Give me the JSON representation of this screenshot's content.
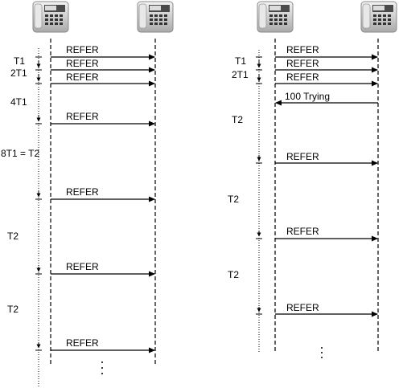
{
  "left_flow": {
    "messages": [
      {
        "label": "REFER"
      },
      {
        "label": "REFER"
      },
      {
        "label": "REFER"
      },
      {
        "label": "REFER"
      },
      {
        "label": "REFER"
      },
      {
        "label": "REFER"
      },
      {
        "label": "REFER"
      }
    ],
    "timer_labels": [
      "T1",
      "2T1",
      "4T1",
      "8T1 = T2",
      "T2",
      "T2"
    ]
  },
  "right_flow": {
    "messages": [
      {
        "label": "REFER"
      },
      {
        "label": "REFER"
      },
      {
        "label": "REFER"
      },
      {
        "label": "100 Trying"
      },
      {
        "label": "REFER"
      },
      {
        "label": "REFER"
      },
      {
        "label": "REFER"
      }
    ],
    "timer_labels": [
      "T1",
      "2T1",
      "T2",
      "T2",
      "T2"
    ]
  }
}
